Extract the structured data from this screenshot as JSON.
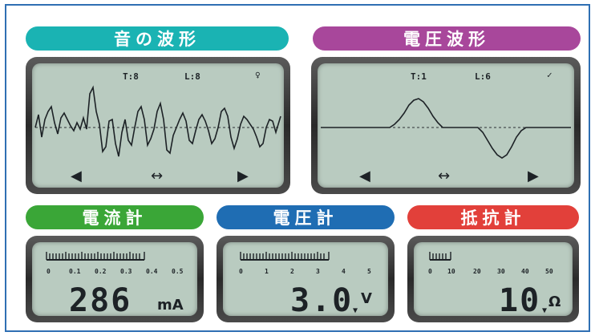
{
  "panels": {
    "sound": {
      "title": "音の波形",
      "color": "#1ab3b3",
      "status_t": "T:8",
      "status_l": "L:8"
    },
    "voltage_wave": {
      "title": "電圧波形",
      "color": "#a8479b",
      "status_t": "T:1",
      "status_l": "L:6"
    },
    "ammeter": {
      "title": "電流計",
      "color": "#3aa637",
      "scale": [
        "0",
        "0.1",
        "0.2",
        "0.3",
        "0.4",
        "0.5"
      ],
      "reading": "286",
      "unit": "mA"
    },
    "voltmeter": {
      "title": "電圧計",
      "color": "#1f6db3",
      "scale": [
        "0",
        "1",
        "2",
        "3",
        "4",
        "5"
      ],
      "reading": "3.0",
      "unit": "V"
    },
    "ohmmeter": {
      "title": "抵抗計",
      "color": "#e2403a",
      "scale": [
        "0",
        "10",
        "20",
        "30",
        "40",
        "50"
      ],
      "reading": "10",
      "unit": "Ω"
    }
  },
  "controls": {
    "left": "◀",
    "both": "↔",
    "right": "▶"
  }
}
